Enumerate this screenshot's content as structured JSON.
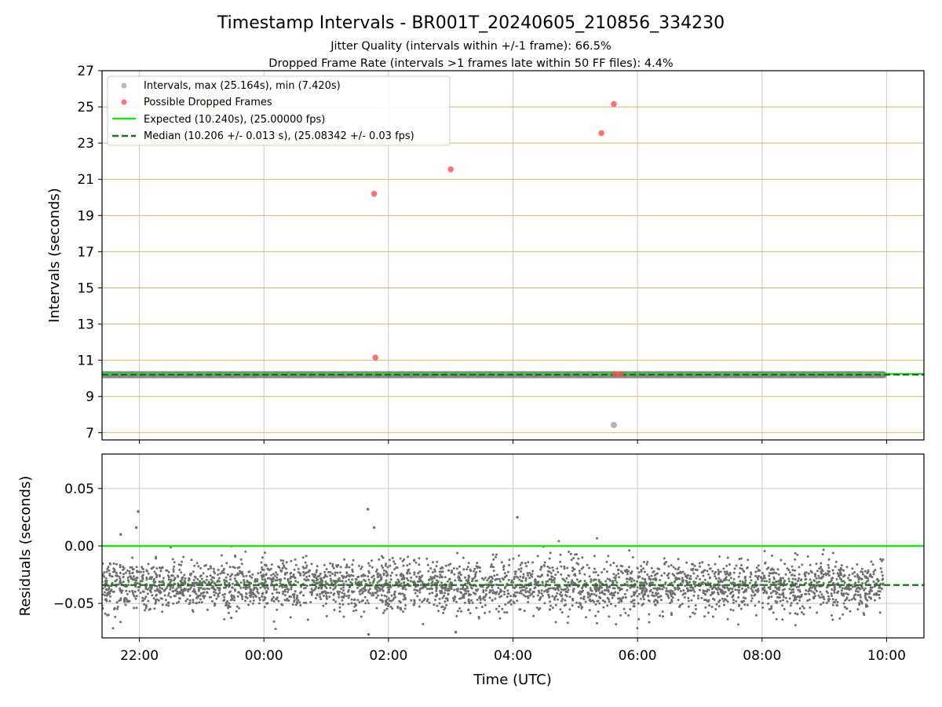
{
  "chart_data": [
    {
      "panel": "intervals",
      "type": "scatter",
      "title": "Timestamp Intervals - BR001T_20240605_210856_334230",
      "subtitle_lines": [
        "Jitter Quality (intervals within +/-1 frame): 66.5%",
        "Dropped Frame Rate (intervals >1 frames late within 50 FF files): 4.4%"
      ],
      "xlabel": "",
      "ylabel": "Intervals (seconds)",
      "x_unit": "hours since 00:00 UTC (2024-06-05/06), negative = before midnight",
      "xlim": [
        -2.6,
        10.6
      ],
      "ylim": [
        6.6,
        27
      ],
      "yticks": [
        7,
        9,
        11,
        13,
        15,
        17,
        19,
        21,
        23,
        25,
        27
      ],
      "grid": true,
      "legend_position": "upper-left",
      "legend": [
        "Intervals, max (25.164s), min (7.420s)",
        "Possible Dropped Frames",
        "Expected (10.240s), (25.00000 fps)",
        "Median (10.206 +/- 0.013 s), (25.08342 +/- 0.03 fps)"
      ],
      "expected_line": 10.24,
      "median_line": 10.206,
      "intervals_band": {
        "x_start": -2.85,
        "x_end": 9.95,
        "y": 10.2
      },
      "intervals_outliers": [
        {
          "x": 5.62,
          "y": 7.42
        }
      ],
      "dropped_frames": [
        {
          "x": 1.77,
          "y": 20.2
        },
        {
          "x": 1.79,
          "y": 11.15
        },
        {
          "x": 3.0,
          "y": 21.55
        },
        {
          "x": 5.42,
          "y": 23.55
        },
        {
          "x": 5.62,
          "y": 25.16
        },
        {
          "x": 5.64,
          "y": 10.22
        },
        {
          "x": 5.73,
          "y": 10.22
        }
      ],
      "colors": {
        "intervals": "#808080",
        "dropped": "#ff4d4d",
        "expected": "#19e619",
        "median": "#0a7a0a",
        "hgrid": "#d2b96a",
        "vgrid": "#c8c8c8"
      }
    },
    {
      "panel": "residuals",
      "type": "scatter",
      "xlabel": "Time (UTC)",
      "ylabel": "Residuals (seconds)",
      "xlim": [
        -2.6,
        10.6
      ],
      "ylim": [
        -0.08,
        0.08
      ],
      "yticks": [
        -0.05,
        0.0,
        0.05
      ],
      "ytick_labels": [
        "−0.05",
        "0.00",
        "0.05"
      ],
      "xticks": [
        -2,
        0,
        2,
        4,
        6,
        8,
        10
      ],
      "xtick_labels": [
        "22:00",
        "00:00",
        "02:00",
        "04:00",
        "06:00",
        "08:00",
        "10:00"
      ],
      "grid": true,
      "expected_line": 0.0,
      "median_line": -0.034,
      "residuals_summary": {
        "x_start": -2.85,
        "x_end": 9.95,
        "center": -0.035,
        "spread_sd": 0.011,
        "count": 3500
      },
      "notable_points": [
        {
          "x": -2.02,
          "y": 0.03
        },
        {
          "x": -2.05,
          "y": 0.016
        },
        {
          "x": -2.3,
          "y": 0.01
        },
        {
          "x": 1.67,
          "y": 0.032
        },
        {
          "x": 1.77,
          "y": 0.016
        },
        {
          "x": 4.07,
          "y": 0.025
        },
        {
          "x": 1.68,
          "y": -0.077
        },
        {
          "x": 3.08,
          "y": -0.075
        }
      ],
      "colors": {
        "points": "#6e6e6e",
        "expected": "#19e619",
        "median": "#0a7a0a",
        "grid": "#c8c8c8"
      }
    }
  ]
}
